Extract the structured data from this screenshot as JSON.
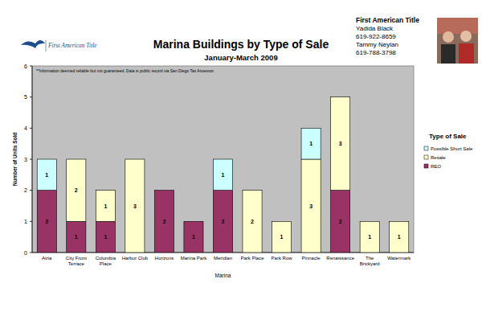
{
  "header": {
    "logo": "First American Title",
    "contact": [
      "First American Title",
      "Yadida Black",
      "619-922-8659",
      "Tammy Neylan",
      "619-788-3798"
    ]
  },
  "chart_data": {
    "type": "bar",
    "stacked": true,
    "data_labels": true,
    "grid": false,
    "legend": "right",
    "title": "Marina Buildings by Type of Sale",
    "subtitle": "January-March 2009",
    "annotations": [
      "**Information deemed reliable but not guaranteed.  Data is public record via San Diego Tax Assessor."
    ],
    "x_label": "Marina",
    "y_label": "Number of Units Sold",
    "legend_title": "Type of Sale",
    "categories": [
      "Atria",
      "City Front Terrace",
      "Columbia Place",
      "Harbor Club",
      "Horizons",
      "Marina Park",
      "Meridian",
      "Park Place",
      "Park Row",
      "Pinnacle",
      "Renaissance",
      "The Brickyard",
      "Watermark"
    ],
    "series": [
      {
        "name": "REO",
        "color": "#993366",
        "values": [
          2,
          1,
          1,
          null,
          2,
          1,
          2,
          null,
          null,
          null,
          2,
          null,
          null
        ]
      },
      {
        "name": "Resale",
        "color": "#ffffcc",
        "values": [
          null,
          2,
          1,
          3,
          null,
          null,
          null,
          2,
          1,
          3,
          3,
          1,
          1
        ]
      },
      {
        "name": "Possible Short Sale",
        "color": "#ccffff",
        "values": [
          1,
          null,
          null,
          null,
          null,
          null,
          1,
          null,
          null,
          1,
          null,
          null,
          null
        ]
      }
    ],
    "ylim": [
      0,
      6
    ],
    "yticks": [
      0,
      1,
      2,
      3,
      4,
      5,
      6
    ]
  }
}
